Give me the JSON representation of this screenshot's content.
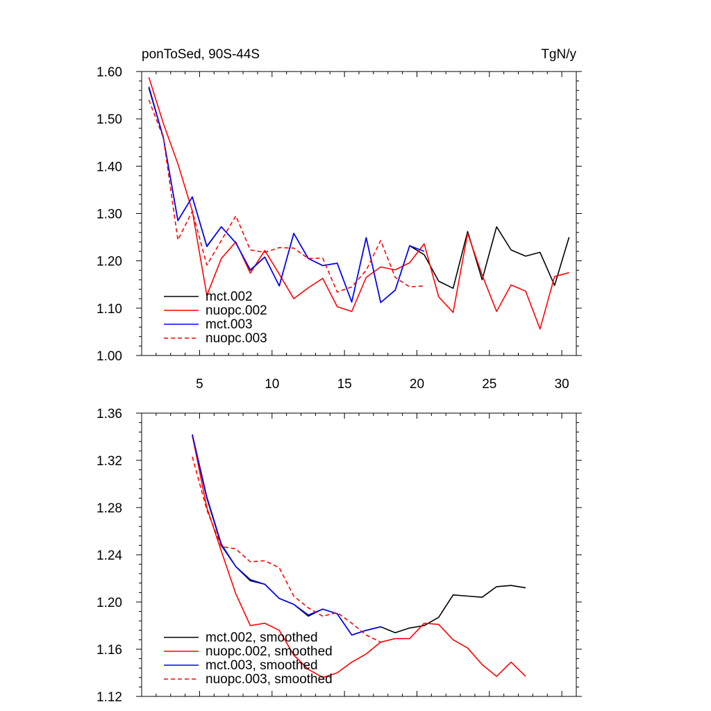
{
  "chart_data": [
    {
      "type": "line",
      "title_left": "ponToSed, 90S-44S",
      "title_right": "TgN/y",
      "xlim": [
        1,
        31
      ],
      "ylim": [
        1.0,
        1.6
      ],
      "xticks": [
        5,
        10,
        15,
        20,
        25,
        30
      ],
      "xtick_labels": [
        "5",
        "10",
        "15",
        "20",
        "25",
        "30"
      ],
      "yticks": [
        1.0,
        1.1,
        1.2,
        1.3,
        1.4,
        1.5,
        1.6
      ],
      "ytick_labels": [
        "1.00",
        "1.10",
        "1.20",
        "1.30",
        "1.40",
        "1.50",
        "1.60"
      ],
      "legend_position": "bottom-left",
      "series": [
        {
          "name": "mct.002",
          "color": "#000000",
          "dash": "solid",
          "x": [
            1.5,
            2.5,
            3.5,
            4.5,
            5.5,
            6.5,
            7.5,
            8.5,
            9.5,
            10.5,
            11.5,
            12.5,
            13.5,
            14.5,
            15.5,
            16.5,
            17.5,
            18.5,
            19.5,
            20.5,
            21.5,
            22.5,
            23.5,
            24.5,
            25.5,
            26.5,
            27.5,
            28.5,
            29.5,
            30.5
          ],
          "y": [
            1.565,
            1.46,
            1.285,
            1.335,
            1.23,
            1.272,
            1.238,
            1.18,
            1.208,
            1.147,
            1.258,
            1.205,
            1.19,
            1.195,
            1.113,
            1.249,
            1.112,
            1.138,
            1.232,
            1.213,
            1.157,
            1.142,
            1.262,
            1.16,
            1.272,
            1.223,
            1.21,
            1.218,
            1.148,
            1.25
          ]
        },
        {
          "name": "nuopc.002",
          "color": "#ff0000",
          "dash": "solid",
          "x": [
            1.5,
            2.5,
            3.5,
            4.5,
            5.5,
            6.5,
            7.5,
            8.5,
            9.5,
            10.5,
            11.5,
            12.5,
            13.5,
            14.5,
            15.5,
            16.5,
            17.5,
            18.5,
            19.5,
            20.5,
            21.5,
            22.5,
            23.5,
            24.5,
            25.5,
            26.5,
            27.5,
            28.5,
            29.5,
            30.5
          ],
          "y": [
            1.588,
            1.49,
            1.405,
            1.305,
            1.127,
            1.205,
            1.24,
            1.174,
            1.222,
            1.172,
            1.12,
            1.143,
            1.163,
            1.103,
            1.093,
            1.165,
            1.187,
            1.181,
            1.196,
            1.236,
            1.124,
            1.091,
            1.258,
            1.17,
            1.093,
            1.149,
            1.136,
            1.056,
            1.167,
            1.175
          ]
        },
        {
          "name": "mct.003",
          "color": "#0000ff",
          "dash": "solid",
          "x": [
            1.5,
            2.5,
            3.5,
            4.5,
            5.5,
            6.5,
            7.5,
            8.5,
            9.5,
            10.5,
            11.5,
            12.5,
            13.5,
            14.5,
            15.5,
            16.5,
            17.5,
            18.5,
            19.5,
            20.5
          ],
          "y": [
            1.568,
            1.46,
            1.285,
            1.335,
            1.231,
            1.272,
            1.238,
            1.181,
            1.208,
            1.147,
            1.258,
            1.205,
            1.19,
            1.195,
            1.113,
            1.249,
            1.112,
            1.138,
            1.232,
            1.22
          ]
        },
        {
          "name": "nuopc.003",
          "color": "#ff0000",
          "dash": "dashed",
          "x": [
            1.5,
            2.5,
            3.5,
            4.5,
            5.5,
            6.5,
            7.5,
            8.5,
            9.5,
            10.5,
            11.5,
            12.5,
            13.5,
            14.5,
            15.5,
            16.5,
            17.5,
            18.5,
            19.5,
            20.5
          ],
          "y": [
            1.54,
            1.46,
            1.244,
            1.305,
            1.191,
            1.243,
            1.295,
            1.223,
            1.218,
            1.228,
            1.227,
            1.205,
            1.206,
            1.134,
            1.145,
            1.18,
            1.243,
            1.165,
            1.145,
            1.147
          ]
        }
      ]
    },
    {
      "type": "line",
      "xlim": [
        1,
        31
      ],
      "ylim": [
        1.12,
        1.36
      ],
      "xticks": [
        5,
        10,
        15,
        20,
        25,
        30
      ],
      "xtick_labels": [],
      "yticks": [
        1.12,
        1.16,
        1.2,
        1.24,
        1.28,
        1.32,
        1.36
      ],
      "ytick_labels": [
        "1.12",
        "1.16",
        "1.20",
        "1.24",
        "1.28",
        "1.32",
        "1.36"
      ],
      "legend_position": "bottom-left",
      "series": [
        {
          "name": "mct.002, smoothed",
          "color": "#000000",
          "dash": "solid",
          "x": [
            4.5,
            5.5,
            6.5,
            7.5,
            8.5,
            9.5,
            10.5,
            11.5,
            12.5,
            13.5,
            14.5,
            15.5,
            16.5,
            17.5,
            18.5,
            19.5,
            20.5,
            21.5,
            22.5,
            23.5,
            24.5,
            25.5,
            26.5,
            27.5
          ],
          "y": [
            1.341,
            1.288,
            1.248,
            1.23,
            1.218,
            1.215,
            1.203,
            1.198,
            1.188,
            1.194,
            1.19,
            1.172,
            1.176,
            1.179,
            1.174,
            1.178,
            1.18,
            1.187,
            1.206,
            1.205,
            1.204,
            1.213,
            1.214,
            1.212
          ]
        },
        {
          "name": "nuopc.002, smoothed",
          "color": "#ff0000",
          "dash": "solid",
          "x": [
            4.5,
            5.5,
            6.5,
            7.5,
            8.5,
            9.5,
            10.5,
            11.5,
            12.5,
            13.5,
            14.5,
            15.5,
            16.5,
            17.5,
            18.5,
            19.5,
            20.5,
            21.5,
            22.5,
            23.5,
            24.5,
            25.5,
            26.5,
            27.5
          ],
          "y": [
            1.341,
            1.28,
            1.243,
            1.207,
            1.18,
            1.182,
            1.176,
            1.155,
            1.143,
            1.136,
            1.14,
            1.149,
            1.156,
            1.166,
            1.169,
            1.169,
            1.182,
            1.181,
            1.168,
            1.161,
            1.147,
            1.137,
            1.149,
            1.137
          ]
        },
        {
          "name": "mct.003, smoothed",
          "color": "#0000ff",
          "dash": "solid",
          "x": [
            4.5,
            5.5,
            6.5,
            7.5,
            8.5,
            9.5,
            10.5,
            11.5,
            12.5,
            13.5,
            14.5,
            15.5,
            16.5,
            17.5
          ],
          "y": [
            1.342,
            1.289,
            1.249,
            1.23,
            1.219,
            1.215,
            1.203,
            1.198,
            1.189,
            1.194,
            1.19,
            1.172,
            1.176,
            1.179
          ]
        },
        {
          "name": "nuopc.003, smoothed",
          "color": "#ff0000",
          "dash": "dashed",
          "x": [
            4.5,
            5.5,
            6.5,
            7.5,
            8.5,
            9.5,
            10.5,
            11.5,
            12.5,
            13.5,
            14.5,
            15.5,
            16.5,
            17.5
          ],
          "y": [
            1.323,
            1.278,
            1.247,
            1.245,
            1.234,
            1.235,
            1.229,
            1.205,
            1.195,
            1.188,
            1.191,
            1.182,
            1.172,
            1.166
          ]
        }
      ]
    }
  ]
}
